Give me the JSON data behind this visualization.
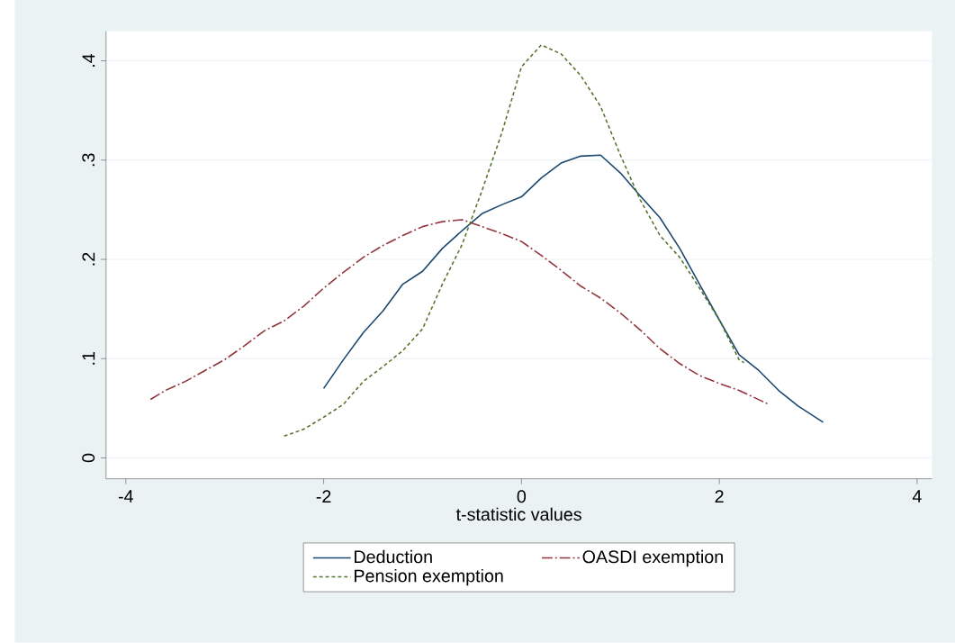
{
  "chart_data": {
    "type": "line",
    "xlabel": "t-statistic values",
    "xlim": [
      -4.2,
      4.15
    ],
    "ylim": [
      -0.021,
      0.43
    ],
    "xticks": [
      -4,
      -2,
      0,
      2,
      4
    ],
    "yticks": [
      0,
      {
        "value": 0.1,
        "label": ".1"
      },
      {
        "value": 0.2,
        "label": ".2"
      },
      {
        "value": 0.3,
        "label": ".3"
      },
      {
        "value": 0.4,
        "label": ".4"
      }
    ],
    "grid": "y",
    "legend": "bottom",
    "marker": "none",
    "series": [
      {
        "name": "Deduction",
        "color": "#1a476f",
        "line_style": "solid",
        "x": [
          -2.0,
          -1.8,
          -1.6,
          -1.4,
          -1.2,
          -1.0,
          -0.8,
          -0.6,
          -0.4,
          -0.2,
          0,
          0.2,
          0.4,
          0.6,
          0.8,
          1.0,
          1.2,
          1.4,
          1.6,
          1.8,
          2.0,
          2.2,
          2.4,
          2.6,
          2.8,
          3.05
        ],
        "values": [
          0.07,
          0.099,
          0.126,
          0.148,
          0.175,
          0.188,
          0.211,
          0.229,
          0.246,
          0.255,
          0.263,
          0.282,
          0.297,
          0.304,
          0.305,
          0.287,
          0.264,
          0.242,
          0.211,
          0.175,
          0.139,
          0.104,
          0.088,
          0.068,
          0.052,
          0.036
        ]
      },
      {
        "name": "OASDI exemption",
        "color": "#90353b",
        "line_style": "dashdot",
        "x": [
          -3.75,
          -3.6,
          -3.4,
          -3.2,
          -3.0,
          -2.8,
          -2.6,
          -2.4,
          -2.2,
          -2.0,
          -1.8,
          -1.6,
          -1.4,
          -1.2,
          -1.0,
          -0.8,
          -0.6,
          -0.4,
          -0.2,
          0,
          0.2,
          0.4,
          0.6,
          0.8,
          1.0,
          1.2,
          1.4,
          1.6,
          1.8,
          2.0,
          2.2,
          2.5
        ],
        "values": [
          0.059,
          0.068,
          0.077,
          0.088,
          0.099,
          0.113,
          0.128,
          0.138,
          0.153,
          0.171,
          0.187,
          0.202,
          0.214,
          0.224,
          0.233,
          0.238,
          0.24,
          0.233,
          0.226,
          0.218,
          0.204,
          0.189,
          0.173,
          0.161,
          0.146,
          0.129,
          0.11,
          0.095,
          0.083,
          0.075,
          0.068,
          0.054
        ]
      },
      {
        "name": "Pension exemption",
        "color": "#55752f",
        "line_style": "dashed",
        "x": [
          -2.4,
          -2.2,
          -2.0,
          -1.8,
          -1.6,
          -1.4,
          -1.2,
          -1.0,
          -0.8,
          -0.6,
          -0.4,
          -0.2,
          0,
          0.2,
          0.4,
          0.6,
          0.8,
          1.0,
          1.2,
          1.4,
          1.6,
          1.8,
          2.0,
          2.2,
          2.25
        ],
        "values": [
          0.022,
          0.029,
          0.041,
          0.054,
          0.077,
          0.092,
          0.108,
          0.13,
          0.175,
          0.215,
          0.269,
          0.327,
          0.394,
          0.416,
          0.407,
          0.385,
          0.354,
          0.305,
          0.26,
          0.224,
          0.202,
          0.171,
          0.139,
          0.099,
          0.096
        ]
      }
    ]
  }
}
